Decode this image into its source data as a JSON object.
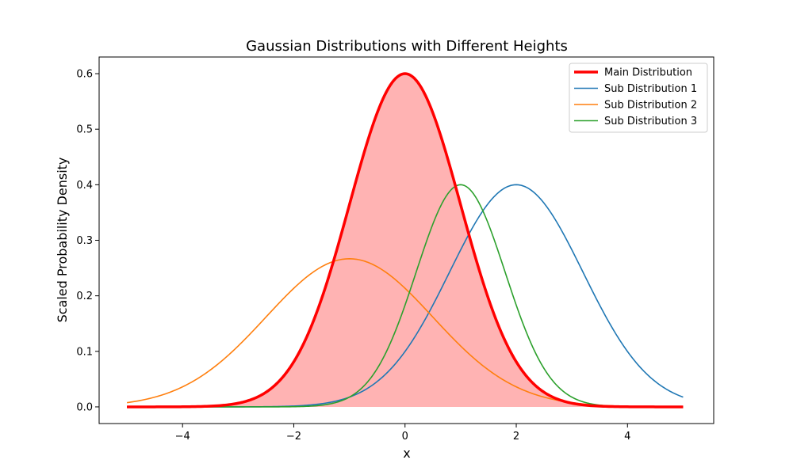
{
  "chart_data": {
    "type": "line",
    "title": "Gaussian Distributions with Different Heights",
    "xlabel": "x",
    "ylabel": "Scaled Probability Density",
    "xlim": [
      -5.5,
      5.55
    ],
    "ylim": [
      -0.03,
      0.63
    ],
    "xticks": [
      -4,
      -2,
      0,
      2,
      4
    ],
    "xtick_labels": [
      "−4",
      "−2",
      "0",
      "2",
      "4"
    ],
    "yticks": [
      0.0,
      0.1,
      0.2,
      0.3,
      0.4,
      0.5,
      0.6
    ],
    "ytick_labels": [
      "0.0",
      "0.1",
      "0.2",
      "0.3",
      "0.4",
      "0.5",
      "0.6"
    ],
    "grid": false,
    "legend_position": "top-right",
    "x_range": [
      -5,
      5
    ],
    "series": [
      {
        "name": "Main Distribution",
        "color": "#ff0000",
        "peak": 0.6,
        "mean": 0,
        "sigma": 1,
        "line_weight": "thick",
        "filled": true,
        "fill_color": "#ffb3b3"
      },
      {
        "name": "Sub Distribution 1",
        "color": "#1f77b4",
        "peak": 0.4,
        "mean": 2,
        "sigma": 1.2,
        "line_weight": "normal",
        "filled": false
      },
      {
        "name": "Sub Distribution 2",
        "color": "#ff7f0e",
        "peak": 0.2667,
        "mean": -1,
        "sigma": 1.5,
        "line_weight": "normal",
        "filled": false
      },
      {
        "name": "Sub Distribution 3",
        "color": "#2ca02c",
        "peak": 0.4,
        "mean": 1,
        "sigma": 0.8,
        "line_weight": "normal",
        "filled": false
      }
    ]
  }
}
